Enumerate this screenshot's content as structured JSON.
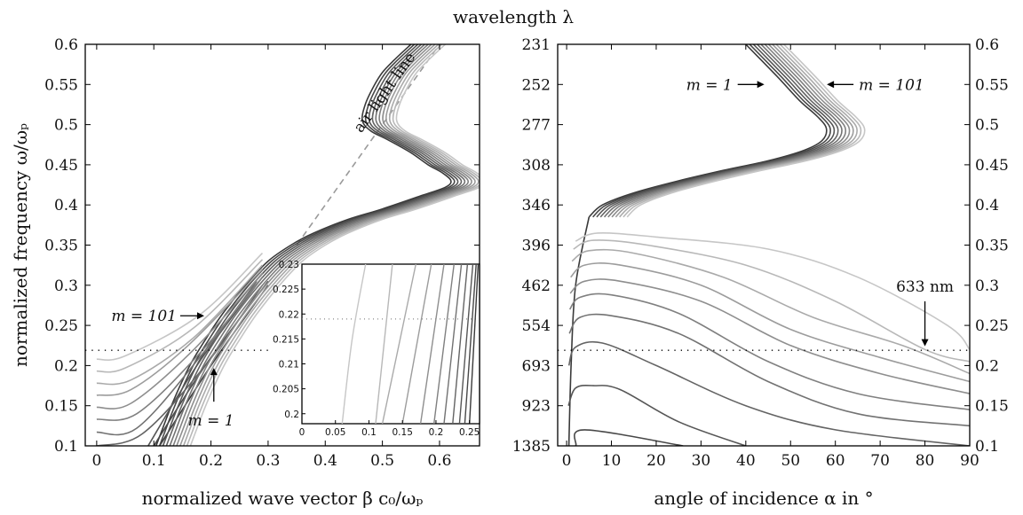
{
  "chart_data": [
    {
      "type": "line",
      "panel": "left",
      "xlabel": "normalized wave vector β c₀/ωₚ",
      "ylabel": "normalized frequency ω/ωₚ",
      "xlim": [
        -0.02,
        0.67
      ],
      "ylim": [
        0.1,
        0.6
      ],
      "xticks": [
        0,
        0.1,
        0.2,
        0.3,
        0.4,
        0.5,
        0.6
      ],
      "xtick_labels": [
        "0",
        "0.1",
        "0.2",
        "0.3",
        "0.4",
        "0.5",
        "0.6"
      ],
      "yticks": [
        0.1,
        0.15,
        0.2,
        0.25,
        0.3,
        0.35,
        0.4,
        0.45,
        0.5,
        0.55,
        0.6
      ],
      "ytick_labels": [
        "0.1",
        "0.15",
        "0.2",
        "0.25",
        "0.3",
        "0.35",
        "0.4",
        "0.45",
        "0.5",
        "0.55",
        "0.6"
      ],
      "light_line": {
        "label": "air light line",
        "points": [
          [
            0.35,
            0.35
          ],
          [
            0.6,
            0.6
          ]
        ]
      },
      "reference_line": {
        "style": "dotted",
        "y": 0.219
      },
      "annotations": [
        {
          "text": "m = 101",
          "x": 0.14,
          "y": 0.262
        },
        {
          "text": "m = 1",
          "x": 0.2,
          "y": 0.132
        }
      ],
      "upper_branch_x_shift": 0.006,
      "upper_branch_m1": [
        [
          0.55,
          0.6
        ],
        [
          0.52,
          0.58
        ],
        [
          0.5,
          0.565
        ],
        [
          0.485,
          0.548
        ],
        [
          0.47,
          0.525
        ],
        [
          0.465,
          0.505
        ],
        [
          0.48,
          0.492
        ],
        [
          0.51,
          0.481
        ],
        [
          0.55,
          0.465
        ],
        [
          0.58,
          0.45
        ],
        [
          0.605,
          0.44
        ],
        [
          0.62,
          0.43
        ],
        [
          0.61,
          0.422
        ],
        [
          0.57,
          0.412
        ],
        [
          0.5,
          0.395
        ],
        [
          0.44,
          0.382
        ],
        [
          0.38,
          0.365
        ],
        [
          0.34,
          0.35
        ],
        [
          0.3,
          0.33
        ],
        [
          0.26,
          0.3
        ],
        [
          0.22,
          0.264
        ],
        [
          0.19,
          0.232
        ],
        [
          0.166,
          0.204
        ],
        [
          0.146,
          0.175
        ],
        [
          0.128,
          0.145
        ],
        [
          0.112,
          0.115
        ],
        [
          0.104,
          0.1
        ]
      ],
      "series": [
        {
          "name": "m = 1",
          "color": "#3a3a3a",
          "lower": [
            [
              0.11,
              0.1
            ],
            [
              0.2,
              0.2
            ],
            [
              0.3,
              0.3
            ]
          ]
        },
        {
          "name": "",
          "color": "#484848",
          "lower": [
            [
              0.1,
              0.1
            ],
            [
              0.19,
              0.2
            ],
            [
              0.3,
              0.305
            ]
          ]
        },
        {
          "name": "",
          "color": "#565656",
          "lower": [
            [
              0.09,
              0.1
            ],
            [
              0.18,
              0.205
            ],
            [
              0.29,
              0.31
            ]
          ]
        },
        {
          "name": "",
          "color": "#646464",
          "lower": [
            [
              0.0,
              0.1
            ],
            [
              0.08,
              0.115
            ],
            [
              0.19,
              0.2
            ],
            [
              0.29,
              0.3
            ]
          ]
        },
        {
          "name": "",
          "color": "#727272",
          "lower": [
            [
              0.0,
              0.117
            ],
            [
              0.07,
              0.122
            ],
            [
              0.18,
              0.21
            ],
            [
              0.28,
              0.305
            ]
          ]
        },
        {
          "name": "",
          "color": "#808080",
          "lower": [
            [
              0.0,
              0.133
            ],
            [
              0.07,
              0.14
            ],
            [
              0.18,
              0.215
            ],
            [
              0.29,
              0.31
            ]
          ]
        },
        {
          "name": "",
          "color": "#8e8e8e",
          "lower": [
            [
              0.0,
              0.148
            ],
            [
              0.06,
              0.153
            ],
            [
              0.17,
              0.22
            ],
            [
              0.29,
              0.315
            ]
          ]
        },
        {
          "name": "",
          "color": "#9c9c9c",
          "lower": [
            [
              0.0,
              0.163
            ],
            [
              0.06,
              0.17
            ],
            [
              0.16,
              0.225
            ],
            [
              0.29,
              0.32
            ]
          ]
        },
        {
          "name": "",
          "color": "#aaaaaa",
          "lower": [
            [
              0.0,
              0.178
            ],
            [
              0.06,
              0.182
            ],
            [
              0.17,
              0.235
            ],
            [
              0.29,
              0.325
            ]
          ]
        },
        {
          "name": "",
          "color": "#b8b8b8",
          "lower": [
            [
              0.0,
              0.193
            ],
            [
              0.05,
              0.197
            ],
            [
              0.17,
              0.247
            ],
            [
              0.29,
              0.332
            ]
          ]
        },
        {
          "name": "m = 101",
          "color": "#c6c6c6",
          "lower": [
            [
              0.0,
              0.208
            ],
            [
              0.05,
              0.212
            ],
            [
              0.18,
              0.263
            ],
            [
              0.29,
              0.34
            ]
          ]
        }
      ]
    },
    {
      "type": "line",
      "panel": "inset",
      "xlim": [
        0,
        0.265
      ],
      "ylim": [
        0.198,
        0.23
      ],
      "xticks": [
        0,
        0.05,
        0.1,
        0.15,
        0.2,
        0.25
      ],
      "xtick_labels": [
        "0",
        "0.05",
        "0.1",
        "0.15",
        "0.2",
        "0.25"
      ],
      "yticks": [
        0.2,
        0.205,
        0.21,
        0.215,
        0.22,
        0.225,
        0.23
      ],
      "ytick_labels": [
        "0.2",
        "0.205",
        "0.21",
        "0.215",
        "0.22",
        "0.225",
        "0.23"
      ],
      "reference_line": {
        "style": "dotted",
        "y": 0.219
      },
      "series": [
        {
          "color": "#3a3a3a",
          "points": [
            [
              0.25,
              0.198
            ],
            [
              0.263,
              0.23
            ]
          ]
        },
        {
          "color": "#484848",
          "points": [
            [
              0.243,
              0.198
            ],
            [
              0.26,
              0.23
            ]
          ]
        },
        {
          "color": "#565656",
          "points": [
            [
              0.235,
              0.198
            ],
            [
              0.255,
              0.23
            ]
          ]
        },
        {
          "color": "#646464",
          "points": [
            [
              0.225,
              0.198
            ],
            [
              0.247,
              0.23
            ]
          ]
        },
        {
          "color": "#727272",
          "points": [
            [
              0.212,
              0.198
            ],
            [
              0.238,
              0.23
            ]
          ]
        },
        {
          "color": "#808080",
          "points": [
            [
              0.197,
              0.198
            ],
            [
              0.227,
              0.23
            ]
          ]
        },
        {
          "color": "#8e8e8e",
          "points": [
            [
              0.177,
              0.198
            ],
            [
              0.212,
              0.23
            ]
          ]
        },
        {
          "color": "#9c9c9c",
          "points": [
            [
              0.15,
              0.198
            ],
            [
              0.193,
              0.23
            ]
          ]
        },
        {
          "color": "#aaaaaa",
          "points": [
            [
              0.12,
              0.198
            ],
            [
              0.17,
              0.23
            ]
          ]
        },
        {
          "color": "#b8b8b8",
          "points": [
            [
              0.11,
              0.198
            ],
            [
              0.135,
              0.23
            ]
          ]
        },
        {
          "color": "#c6c6c6",
          "points": [
            [
              0.06,
              0.198
            ],
            [
              0.075,
              0.215
            ],
            [
              0.095,
              0.23
            ]
          ]
        }
      ]
    },
    {
      "type": "line",
      "panel": "right",
      "title": "wavelength λ",
      "xlabel": "angle of incidence α in °",
      "xlim": [
        -2,
        90
      ],
      "ylim": [
        0.1,
        0.6
      ],
      "xticks": [
        0,
        10,
        20,
        30,
        40,
        50,
        60,
        70,
        80,
        90
      ],
      "xtick_labels": [
        "0",
        "10",
        "20",
        "30",
        "40",
        "50",
        "60",
        "70",
        "80",
        "90"
      ],
      "yticks": [
        0.1,
        0.15,
        0.2,
        0.25,
        0.3,
        0.35,
        0.4,
        0.45,
        0.5,
        0.55,
        0.6
      ],
      "ytick_labels": [
        "0.1",
        "0.15",
        "0.2",
        "0.25",
        "0.3",
        "0.35",
        "0.4",
        "0.45",
        "0.5",
        "0.55",
        "0.6"
      ],
      "wavelength_tick_labels": [
        "1385",
        "923",
        "693",
        "554",
        "462",
        "396",
        "346",
        "308",
        "277",
        "252",
        "231"
      ],
      "reference_line": {
        "style": "dotted",
        "y": 0.219
      },
      "annotations": [
        {
          "text": "m = 1",
          "x": 37,
          "y": 0.55
        },
        {
          "text": "m = 101",
          "x": 70,
          "y": 0.55
        },
        {
          "text": "633 nm",
          "x": 80,
          "y": 0.25
        }
      ],
      "top_branch_x_shift": 0.85,
      "top_branch_m1": [
        [
          40,
          0.6
        ],
        [
          47,
          0.56
        ],
        [
          52,
          0.53
        ],
        [
          56,
          0.51
        ],
        [
          58,
          0.495
        ],
        [
          57,
          0.48
        ],
        [
          53,
          0.468
        ],
        [
          45,
          0.455
        ],
        [
          35,
          0.443
        ],
        [
          25,
          0.43
        ],
        [
          15,
          0.415
        ],
        [
          8,
          0.4
        ],
        [
          5,
          0.385
        ]
      ],
      "series": [
        {
          "name": "m = 1",
          "color": "#3a3a3a",
          "points": [
            [
              0.5,
              0.1
            ],
            [
              1.0,
              0.2
            ],
            [
              2.0,
              0.3
            ],
            [
              5.0,
              0.385
            ]
          ]
        },
        {
          "name": "",
          "color": "#484848",
          "points": [
            [
              0.4,
              0.1
            ],
            [
              2,
              0.1
            ],
            [
              4,
              0.12
            ],
            [
              26,
              0.1
            ]
          ]
        },
        {
          "name": "",
          "color": "#565656",
          "points": [
            [
              0.4,
              0.15
            ],
            [
              2,
              0.172
            ],
            [
              6,
              0.175
            ],
            [
              12,
              0.17
            ],
            [
              25,
              0.13
            ],
            [
              40,
              0.1
            ]
          ]
        },
        {
          "name": "",
          "color": "#646464",
          "points": [
            [
              0.5,
              0.2
            ],
            [
              2,
              0.223
            ],
            [
              8,
              0.228
            ],
            [
              20,
              0.2
            ],
            [
              40,
              0.15
            ],
            [
              60,
              0.12
            ],
            [
              90,
              0.1
            ]
          ]
        },
        {
          "name": "",
          "color": "#727272",
          "points": [
            [
              0.6,
              0.24
            ],
            [
              3,
              0.26
            ],
            [
              10,
              0.262
            ],
            [
              25,
              0.24
            ],
            [
              45,
              0.18
            ],
            [
              65,
              0.14
            ],
            [
              90,
              0.125
            ]
          ]
        },
        {
          "name": "",
          "color": "#808080",
          "points": [
            [
              0.7,
              0.27
            ],
            [
              3,
              0.285
            ],
            [
              10,
              0.288
            ],
            [
              25,
              0.265
            ],
            [
              45,
              0.205
            ],
            [
              65,
              0.165
            ],
            [
              90,
              0.145
            ]
          ]
        },
        {
          "name": "",
          "color": "#8e8e8e",
          "points": [
            [
              0.8,
              0.29
            ],
            [
              4,
              0.305
            ],
            [
              12,
              0.305
            ],
            [
              30,
              0.28
            ],
            [
              50,
              0.225
            ],
            [
              70,
              0.19
            ],
            [
              90,
              0.165
            ]
          ]
        },
        {
          "name": "",
          "color": "#9c9c9c",
          "points": [
            [
              0.9,
              0.31
            ],
            [
              4,
              0.325
            ],
            [
              12,
              0.325
            ],
            [
              30,
              0.3
            ],
            [
              50,
              0.245
            ],
            [
              70,
              0.21
            ],
            [
              90,
              0.18
            ]
          ]
        },
        {
          "name": "",
          "color": "#aaaaaa",
          "points": [
            [
              1.2,
              0.33
            ],
            [
              5,
              0.343
            ],
            [
              15,
              0.34
            ],
            [
              35,
              0.31
            ],
            [
              55,
              0.26
            ],
            [
              75,
              0.225
            ],
            [
              90,
              0.19
            ]
          ]
        },
        {
          "name": "",
          "color": "#b8b8b8",
          "points": [
            [
              1.5,
              0.345
            ],
            [
              6,
              0.356
            ],
            [
              18,
              0.35
            ],
            [
              40,
              0.325
            ],
            [
              60,
              0.28
            ],
            [
              80,
              0.22
            ],
            [
              90,
              0.205
            ]
          ]
        },
        {
          "name": "m = 101",
          "color": "#c6c6c6",
          "points": [
            [
              2.0,
              0.355
            ],
            [
              7,
              0.365
            ],
            [
              20,
              0.36
            ],
            [
              45,
              0.345
            ],
            [
              65,
              0.31
            ],
            [
              85,
              0.25
            ],
            [
              90,
              0.22
            ]
          ]
        }
      ]
    }
  ],
  "colors": {
    "light_line": "#9a9a9a",
    "reference_line": "#000000",
    "axes": "#000000"
  }
}
